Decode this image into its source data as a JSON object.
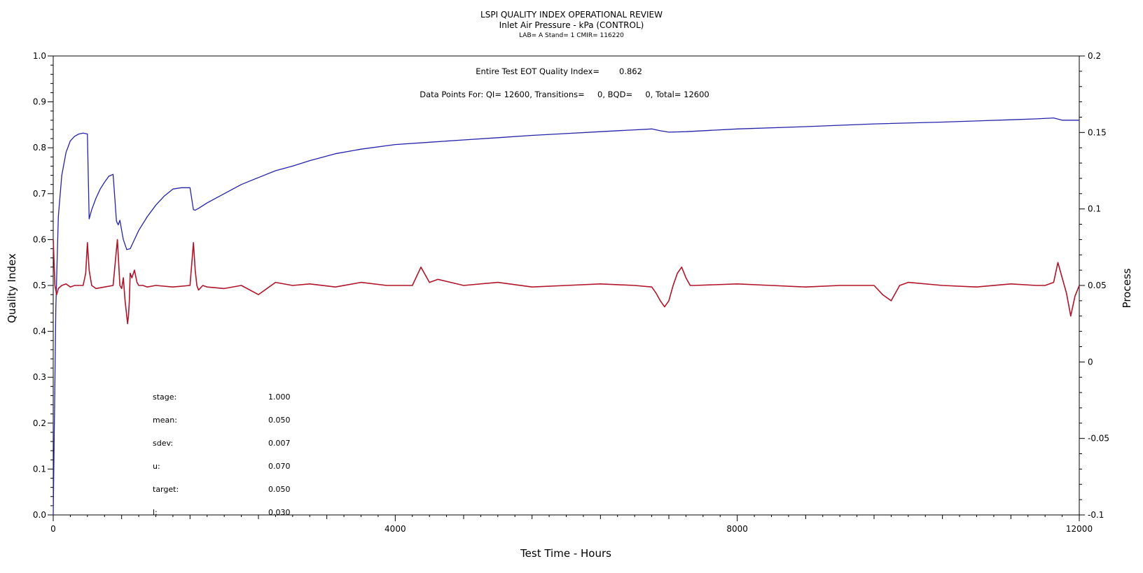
{
  "header": {
    "title": "LSPI QUALITY INDEX OPERATIONAL REVIEW",
    "subtitle": "Inlet Air Pressure - kPa (CONTROL)",
    "meta": "LAB= A Stand= 1 CMIR= 116220"
  },
  "annotations": {
    "eot_label": "Entire Test EOT Quality Index=",
    "eot_value": "0.862",
    "data_points": "Data Points For: QI= 12600, Transitions=     0, BQD=     0, Total= 12600"
  },
  "stats": [
    {
      "label": "stage:",
      "value": "1.000"
    },
    {
      "label": "mean:",
      "value": "0.050"
    },
    {
      "label": "sdev:",
      "value": "0.007"
    },
    {
      "label": "u:",
      "value": "0.070"
    },
    {
      "label": "target:",
      "value": "0.050"
    },
    {
      "label": "l:",
      "value": "0.030"
    }
  ],
  "chart_data": {
    "type": "line",
    "xlabel": "Test Time - Hours",
    "ylabel": "Quality Index",
    "y2label": "Process",
    "xlim": [
      0,
      12000
    ],
    "ylim": [
      0,
      1.0
    ],
    "y2lim": [
      -0.1,
      0.2
    ],
    "x_ticks": [
      0,
      4000,
      8000,
      12000
    ],
    "x_tick_labels": [
      "0",
      "4000",
      "8000",
      "12000"
    ],
    "y_ticks": [
      0,
      0.1,
      0.2,
      0.3,
      0.4,
      0.5,
      0.6,
      0.7,
      0.8,
      0.9,
      1.0
    ],
    "y_tick_labels": [
      "0.0",
      "0.1",
      "0.2",
      "0.3",
      "0.4",
      "0.5",
      "0.6",
      "0.7",
      "0.8",
      "0.9",
      "1.0"
    ],
    "y2_ticks": [
      -0.1,
      -0.05,
      0,
      0.05,
      0.1,
      0.15,
      0.2
    ],
    "y2_tick_labels": [
      "-0.1",
      "-0.05",
      "0",
      "0.05",
      "0.1",
      "0.15",
      "0.2"
    ],
    "grid": false,
    "colors": {
      "quality_index": "#2222aa",
      "process": "#b01428"
    },
    "series": [
      {
        "axis": "left",
        "x": [
          0,
          30,
          60,
          100,
          150,
          200,
          250,
          300,
          350,
          400,
          420,
          450,
          500,
          550,
          600,
          650,
          700,
          740,
          760,
          780,
          800,
          820,
          860,
          900,
          950,
          1000,
          1100,
          1200,
          1300,
          1400,
          1500,
          1600,
          1640,
          1660,
          1700,
          1800,
          2000,
          2200,
          2400,
          2600,
          2800,
          3000,
          3300,
          3600,
          4000,
          4400,
          4800,
          5200,
          5600,
          6000,
          6400,
          6800,
          7000,
          7100,
          7200,
          7400,
          8000,
          8800,
          9600,
          10400,
          11200,
          11500,
          11700,
          11800,
          12000
        ],
        "y": [
          0.0,
          0.45,
          0.65,
          0.74,
          0.79,
          0.815,
          0.825,
          0.83,
          0.832,
          0.83,
          0.645,
          0.665,
          0.69,
          0.71,
          0.725,
          0.738,
          0.742,
          0.64,
          0.632,
          0.642,
          0.62,
          0.6,
          0.578,
          0.58,
          0.6,
          0.62,
          0.65,
          0.675,
          0.695,
          0.71,
          0.713,
          0.713,
          0.665,
          0.664,
          0.668,
          0.68,
          0.7,
          0.72,
          0.735,
          0.75,
          0.76,
          0.772,
          0.787,
          0.797,
          0.807,
          0.812,
          0.817,
          0.822,
          0.827,
          0.831,
          0.835,
          0.839,
          0.841,
          0.837,
          0.834,
          0.835,
          0.841,
          0.846,
          0.852,
          0.856,
          0.861,
          0.863,
          0.865,
          0.86,
          0.86
        ]
      },
      {
        "axis": "right",
        "x": [
          0,
          20,
          40,
          60,
          100,
          150,
          200,
          250,
          300,
          350,
          380,
          400,
          420,
          450,
          500,
          600,
          700,
          750,
          760,
          780,
          800,
          820,
          840,
          860,
          870,
          880,
          890,
          900,
          920,
          950,
          980,
          1000,
          1050,
          1100,
          1200,
          1400,
          1600,
          1640,
          1660,
          1680,
          1700,
          1750,
          1800,
          2000,
          2200,
          2400,
          2600,
          2800,
          3000,
          3300,
          3600,
          3900,
          4200,
          4300,
          4400,
          4500,
          4800,
          5200,
          5600,
          6000,
          6400,
          6800,
          7000,
          7050,
          7100,
          7150,
          7200,
          7250,
          7300,
          7350,
          7400,
          7450,
          7500,
          8000,
          8400,
          8800,
          9200,
          9600,
          9700,
          9800,
          9900,
          10000,
          10400,
          10800,
          11200,
          11500,
          11600,
          11700,
          11750,
          11800,
          11850,
          11900,
          11950,
          12000
        ],
        "y": [
          0.08,
          0.05,
          0.044,
          0.048,
          0.05,
          0.051,
          0.049,
          0.05,
          0.05,
          0.05,
          0.058,
          0.078,
          0.06,
          0.05,
          0.048,
          0.049,
          0.05,
          0.08,
          0.07,
          0.05,
          0.048,
          0.055,
          0.04,
          0.03,
          0.025,
          0.03,
          0.04,
          0.058,
          0.055,
          0.06,
          0.052,
          0.05,
          0.05,
          0.049,
          0.05,
          0.049,
          0.05,
          0.078,
          0.06,
          0.05,
          0.047,
          0.05,
          0.049,
          0.048,
          0.05,
          0.044,
          0.052,
          0.05,
          0.051,
          0.049,
          0.052,
          0.05,
          0.05,
          0.062,
          0.052,
          0.054,
          0.05,
          0.052,
          0.049,
          0.05,
          0.051,
          0.05,
          0.049,
          0.045,
          0.04,
          0.036,
          0.04,
          0.05,
          0.058,
          0.062,
          0.055,
          0.05,
          0.05,
          0.051,
          0.05,
          0.049,
          0.05,
          0.05,
          0.044,
          0.04,
          0.05,
          0.052,
          0.05,
          0.049,
          0.051,
          0.05,
          0.05,
          0.052,
          0.065,
          0.055,
          0.045,
          0.03,
          0.043,
          0.05
        ]
      }
    ]
  }
}
